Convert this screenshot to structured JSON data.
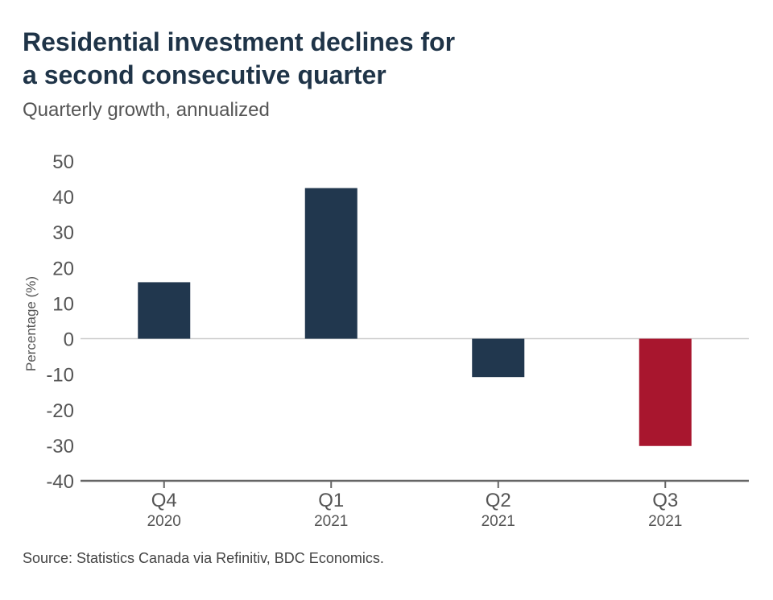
{
  "header": {
    "title_line1": "Residential investment declines for",
    "title_line2": "a second consecutive quarter",
    "subtitle": "Quarterly growth, annualized"
  },
  "footer": {
    "source": "Source: Statistics Canada via Refinitiv, BDC Economics."
  },
  "chart_data": {
    "type": "bar",
    "title": "Residential investment declines for a second consecutive quarter",
    "subtitle": "Quarterly growth, annualized",
    "ylabel": "Percentage (%)",
    "xlabel": "",
    "categories": [
      "Q4",
      "Q1",
      "Q2",
      "Q3"
    ],
    "category_years": [
      "2020",
      "2021",
      "2021",
      "2021"
    ],
    "values": [
      15.9,
      42.4,
      -10.8,
      -30.2
    ],
    "bar_colors": [
      "#21374e",
      "#21374e",
      "#21374e",
      "#a8162e"
    ],
    "ylim": [
      -40,
      50
    ],
    "yticks": [
      "50",
      "40",
      "30",
      "20",
      "10",
      "0",
      "-10",
      "-20",
      "-30",
      "-40"
    ],
    "grid": false,
    "legend": "none",
    "zero_line_color": "#cccccc",
    "axis_color": "#666666"
  }
}
